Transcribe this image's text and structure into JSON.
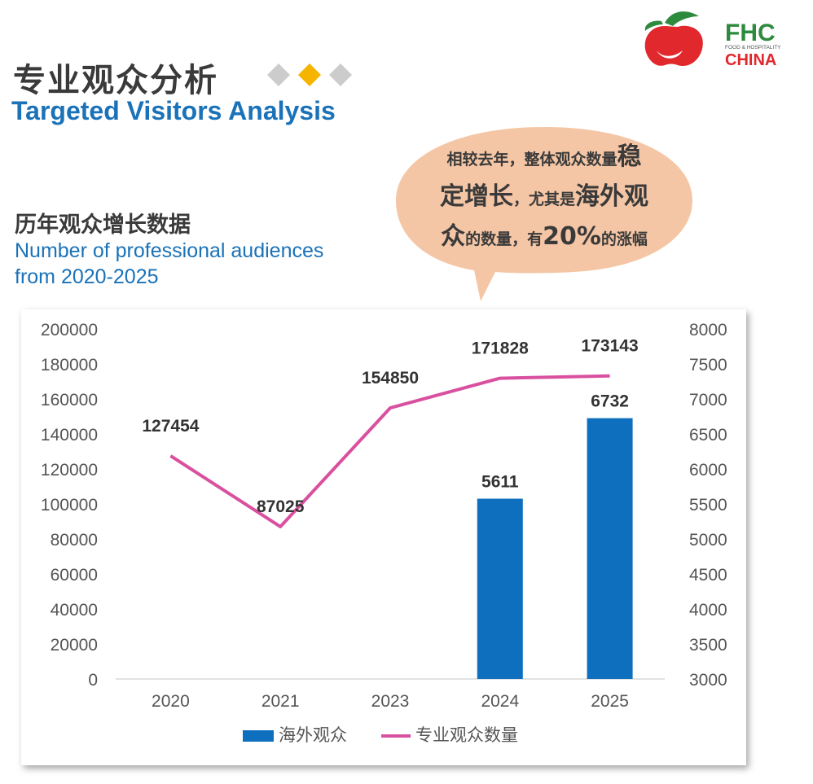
{
  "header": {
    "title_cn": "专业观众分析",
    "title_en": "Targeted Visitors Analysis",
    "logo_text": "FHC",
    "logo_small": "FOOD & HOSPITALITY",
    "logo_sub": "CHINA"
  },
  "section": {
    "title_cn": "历年观众增长数据",
    "title_en": "Number of professional audiences from 2020-2025"
  },
  "bubble": {
    "p1": "相较去年，整体观众数量",
    "p1b": "稳",
    "p2b": "定增长",
    "p2": "，尤其是",
    "p2c": "海外观",
    "p3b": "众",
    "p3": "的数量，有",
    "p3c": "20%",
    "p3d": "的涨幅"
  },
  "colors": {
    "bar": "#0f6fbf",
    "line": "#d9509f",
    "accent": "#f4b400",
    "bubble": "#f5c6a5",
    "logo_red": "#e0282d",
    "logo_green": "#2e8b3e"
  },
  "chart_data": {
    "type": "bar+line",
    "categories": [
      "2020",
      "2021",
      "2023",
      "2024",
      "2025"
    ],
    "series": [
      {
        "name": "海外观众",
        "type": "bar",
        "axis": "left",
        "values": [
          null,
          null,
          null,
          103000,
          149000
        ],
        "data_labels": [
          "",
          "",
          "",
          "5611",
          "6732"
        ]
      },
      {
        "name": "专业观众数量",
        "type": "line",
        "axis": "left",
        "values": [
          127454,
          87025,
          154850,
          171828,
          173143
        ],
        "data_labels": [
          "127454",
          "87025",
          "154850",
          "171828",
          "173143"
        ]
      }
    ],
    "y_left": {
      "min": 0,
      "max": 200000,
      "ticks": [
        "0",
        "20000",
        "40000",
        "60000",
        "80000",
        "100000",
        "120000",
        "140000",
        "160000",
        "180000",
        "200000"
      ]
    },
    "y_right": {
      "min": 3000,
      "max": 8000,
      "ticks": [
        "3000",
        "3500",
        "4000",
        "4500",
        "5000",
        "5500",
        "6000",
        "6500",
        "7000",
        "7500",
        "8000"
      ]
    },
    "legend": "bottom",
    "grid": false
  }
}
